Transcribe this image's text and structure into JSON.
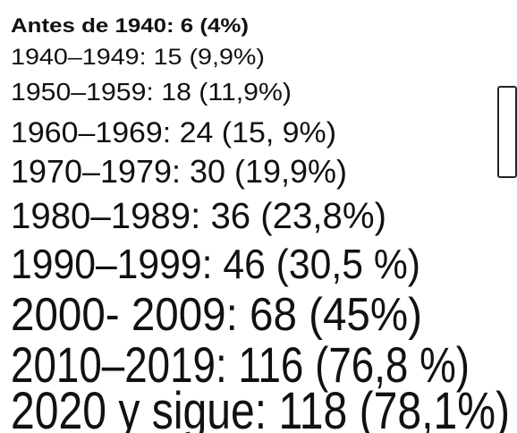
{
  "items": [
    "Antes de 1940: 6 (4%)",
    "1940–1949: 15 (9,9%)",
    "1950–1959: 18 (11,9%)",
    "1960–1969: 24 (15, 9%)",
    "1970–1979: 30 (19,9%)",
    "1980–1989: 36 (23,8%)",
    "1990–1999: 46 (30,5 %)",
    "2000- 2009: 68 (45%)",
    "2010–2019: 116 (76,8 %)",
    "2020 y sigue: 118 (78,1%)"
  ]
}
